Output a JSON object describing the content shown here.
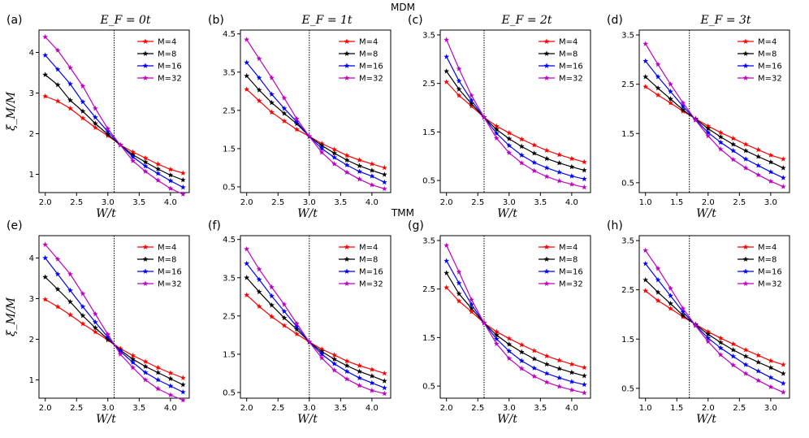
{
  "row_titles": [
    "MDM",
    "TMM"
  ],
  "chart_data": [
    {
      "type": "line",
      "panel": "(a)",
      "title": "E_F = 0t",
      "xlabel": "W/t",
      "ylabel": "ξ_M/M",
      "xlim": [
        1.9,
        4.3
      ],
      "ylim": [
        0.55,
        4.55
      ],
      "xticks": [
        2.0,
        2.5,
        3.0,
        3.5,
        4.0
      ],
      "yticks": [
        1,
        2,
        3,
        4
      ],
      "critical_x": 3.1,
      "x": [
        2.0,
        2.2,
        2.4,
        2.6,
        2.8,
        3.0,
        3.2,
        3.4,
        3.6,
        3.8,
        4.0,
        4.2
      ],
      "series": [
        {
          "name": "M=4",
          "color": "#ff0000",
          "values": [
            2.92,
            2.8,
            2.62,
            2.38,
            2.15,
            1.95,
            1.72,
            1.55,
            1.4,
            1.25,
            1.12,
            1.03
          ]
        },
        {
          "name": "M=8",
          "color": "#000000",
          "values": [
            3.45,
            3.2,
            2.82,
            2.55,
            2.25,
            1.98,
            1.72,
            1.48,
            1.3,
            1.13,
            0.98,
            0.86
          ]
        },
        {
          "name": "M=16",
          "color": "#0000ff",
          "values": [
            3.93,
            3.58,
            3.22,
            2.78,
            2.4,
            2.05,
            1.72,
            1.43,
            1.2,
            1.02,
            0.84,
            0.68
          ]
        },
        {
          "name": "M=32",
          "color": "#c000c0",
          "values": [
            4.38,
            4.05,
            3.62,
            3.17,
            2.62,
            2.12,
            1.72,
            1.33,
            1.07,
            0.85,
            0.65,
            0.51
          ]
        }
      ]
    },
    {
      "type": "line",
      "panel": "(b)",
      "title": "E_F = 1t",
      "xlabel": "W/t",
      "ylabel": "",
      "xlim": [
        1.9,
        4.3
      ],
      "ylim": [
        0.35,
        4.6
      ],
      "xticks": [
        2.0,
        2.5,
        3.0,
        3.5,
        4.0
      ],
      "yticks": [
        0.5,
        1.5,
        2.5,
        3.5,
        4.5
      ],
      "critical_x": 3.0,
      "x": [
        2.0,
        2.2,
        2.4,
        2.6,
        2.8,
        3.0,
        3.2,
        3.4,
        3.6,
        3.8,
        4.0,
        4.2
      ],
      "series": [
        {
          "name": "M=4",
          "color": "#ff0000",
          "values": [
            3.05,
            2.75,
            2.45,
            2.22,
            2.0,
            1.82,
            1.63,
            1.48,
            1.32,
            1.2,
            1.1,
            1.0
          ]
        },
        {
          "name": "M=8",
          "color": "#000000",
          "values": [
            3.4,
            3.03,
            2.7,
            2.42,
            2.15,
            1.82,
            1.58,
            1.38,
            1.2,
            1.05,
            0.93,
            0.82
          ]
        },
        {
          "name": "M=16",
          "color": "#0000ff",
          "values": [
            3.75,
            3.35,
            2.92,
            2.55,
            2.2,
            1.82,
            1.5,
            1.27,
            1.07,
            0.9,
            0.78,
            0.62
          ]
        },
        {
          "name": "M=32",
          "color": "#c000c0",
          "values": [
            4.35,
            3.85,
            3.35,
            2.82,
            2.28,
            1.82,
            1.4,
            1.1,
            0.88,
            0.7,
            0.55,
            0.45
          ]
        }
      ]
    },
    {
      "type": "line",
      "panel": "(c)",
      "title": "E_F = 2t",
      "xlabel": "W/t",
      "ylabel": "",
      "xlim": [
        1.9,
        4.3
      ],
      "ylim": [
        0.25,
        3.6
      ],
      "xticks": [
        2.0,
        2.5,
        3.0,
        3.5,
        4.0
      ],
      "yticks": [
        0.5,
        1.5,
        2.5,
        3.5
      ],
      "critical_x": 2.6,
      "x": [
        2.0,
        2.2,
        2.4,
        2.6,
        2.8,
        3.0,
        3.2,
        3.4,
        3.6,
        3.8,
        4.0,
        4.2
      ],
      "series": [
        {
          "name": "M=4",
          "color": "#ff0000",
          "values": [
            2.53,
            2.25,
            2.03,
            1.8,
            1.62,
            1.48,
            1.35,
            1.23,
            1.12,
            1.03,
            0.95,
            0.88
          ]
        },
        {
          "name": "M=8",
          "color": "#000000",
          "values": [
            2.75,
            2.38,
            2.08,
            1.8,
            1.55,
            1.36,
            1.2,
            1.06,
            0.95,
            0.86,
            0.78,
            0.71
          ]
        },
        {
          "name": "M=16",
          "color": "#0000ff",
          "values": [
            3.05,
            2.55,
            2.15,
            1.8,
            1.47,
            1.22,
            1.02,
            0.87,
            0.76,
            0.67,
            0.59,
            0.53
          ]
        },
        {
          "name": "M=32",
          "color": "#c000c0",
          "values": [
            3.4,
            2.8,
            2.25,
            1.8,
            1.37,
            1.07,
            0.86,
            0.7,
            0.58,
            0.49,
            0.42,
            0.36
          ]
        }
      ]
    },
    {
      "type": "line",
      "panel": "(d)",
      "title": "E_F = 3t",
      "xlabel": "W/t",
      "ylabel": "",
      "xlim": [
        0.9,
        3.3
      ],
      "ylim": [
        0.3,
        3.6
      ],
      "xticks": [
        1.0,
        1.5,
        2.0,
        2.5,
        3.0
      ],
      "yticks": [
        0.5,
        1.5,
        2.5,
        3.5
      ],
      "critical_x": 1.7,
      "x": [
        1.0,
        1.2,
        1.4,
        1.6,
        1.8,
        2.0,
        2.2,
        2.4,
        2.6,
        2.8,
        3.0,
        3.2
      ],
      "series": [
        {
          "name": "M=4",
          "color": "#ff0000",
          "values": [
            2.45,
            2.28,
            2.12,
            1.95,
            1.8,
            1.65,
            1.52,
            1.4,
            1.28,
            1.17,
            1.06,
            0.98
          ]
        },
        {
          "name": "M=8",
          "color": "#000000",
          "values": [
            2.65,
            2.42,
            2.2,
            1.98,
            1.79,
            1.6,
            1.43,
            1.28,
            1.15,
            1.03,
            0.92,
            0.8
          ]
        },
        {
          "name": "M=16",
          "color": "#0000ff",
          "values": [
            2.97,
            2.65,
            2.35,
            2.05,
            1.78,
            1.52,
            1.32,
            1.15,
            0.98,
            0.85,
            0.72,
            0.6
          ]
        },
        {
          "name": "M=32",
          "color": "#c000c0",
          "values": [
            3.32,
            2.9,
            2.5,
            2.12,
            1.77,
            1.45,
            1.18,
            0.97,
            0.8,
            0.66,
            0.53,
            0.42
          ]
        }
      ]
    },
    {
      "type": "line",
      "panel": "(e)",
      "title": "",
      "xlabel": "W/t",
      "ylabel": "ξ_M/M",
      "xlim": [
        1.9,
        4.3
      ],
      "ylim": [
        0.55,
        4.55
      ],
      "xticks": [
        2.0,
        2.5,
        3.0,
        3.5,
        4.0
      ],
      "yticks": [
        1,
        2,
        3,
        4
      ],
      "critical_x": 3.1,
      "x": [
        2.0,
        2.2,
        2.4,
        2.6,
        2.8,
        3.0,
        3.2,
        3.4,
        3.6,
        3.8,
        4.0,
        4.2
      ],
      "series": [
        {
          "name": "M=4",
          "color": "#ff0000",
          "values": [
            2.98,
            2.8,
            2.6,
            2.38,
            2.18,
            1.98,
            1.77,
            1.6,
            1.45,
            1.3,
            1.17,
            1.05
          ]
        },
        {
          "name": "M=8",
          "color": "#000000",
          "values": [
            3.53,
            3.23,
            2.92,
            2.58,
            2.28,
            2.0,
            1.73,
            1.51,
            1.33,
            1.18,
            1.03,
            0.88
          ]
        },
        {
          "name": "M=16",
          "color": "#0000ff",
          "values": [
            4.0,
            3.6,
            3.2,
            2.8,
            2.42,
            2.05,
            1.7,
            1.43,
            1.18,
            1.0,
            0.85,
            0.7
          ]
        },
        {
          "name": "M=32",
          "color": "#c000c0",
          "values": [
            4.33,
            3.97,
            3.6,
            3.12,
            2.62,
            2.12,
            1.63,
            1.3,
            1.0,
            0.78,
            0.63,
            0.5
          ]
        }
      ]
    },
    {
      "type": "line",
      "panel": "(f)",
      "title": "",
      "xlabel": "W/t",
      "ylabel": "",
      "xlim": [
        1.9,
        4.3
      ],
      "ylim": [
        0.35,
        4.6
      ],
      "xticks": [
        2.0,
        2.5,
        3.0,
        3.5,
        4.0
      ],
      "yticks": [
        0.5,
        1.5,
        2.5,
        3.5,
        4.5
      ],
      "critical_x": 3.0,
      "x": [
        2.0,
        2.2,
        2.4,
        2.6,
        2.8,
        3.0,
        3.2,
        3.4,
        3.6,
        3.8,
        4.0,
        4.2
      ],
      "series": [
        {
          "name": "M=4",
          "color": "#ff0000",
          "values": [
            3.05,
            2.75,
            2.48,
            2.25,
            2.03,
            1.82,
            1.63,
            1.48,
            1.32,
            1.2,
            1.1,
            1.0
          ]
        },
        {
          "name": "M=8",
          "color": "#000000",
          "values": [
            3.5,
            3.13,
            2.78,
            2.45,
            2.15,
            1.82,
            1.57,
            1.37,
            1.2,
            1.05,
            0.93,
            0.8
          ]
        },
        {
          "name": "M=16",
          "color": "#0000ff",
          "values": [
            3.87,
            3.45,
            3.02,
            2.62,
            2.22,
            1.82,
            1.5,
            1.25,
            1.05,
            0.88,
            0.75,
            0.62
          ]
        },
        {
          "name": "M=32",
          "color": "#c000c0",
          "values": [
            4.25,
            3.72,
            3.25,
            2.8,
            2.3,
            1.82,
            1.4,
            1.08,
            0.85,
            0.68,
            0.55,
            0.47
          ]
        }
      ]
    },
    {
      "type": "line",
      "panel": "(g)",
      "title": "",
      "xlabel": "W/t",
      "ylabel": "",
      "xlim": [
        1.9,
        4.3
      ],
      "ylim": [
        0.25,
        3.6
      ],
      "xticks": [
        2.0,
        2.5,
        3.0,
        3.5,
        4.0
      ],
      "yticks": [
        0.5,
        1.5,
        2.5,
        3.5
      ],
      "critical_x": 2.6,
      "x": [
        2.0,
        2.2,
        2.4,
        2.6,
        2.8,
        3.0,
        3.2,
        3.4,
        3.6,
        3.8,
        4.0,
        4.2
      ],
      "series": [
        {
          "name": "M=4",
          "color": "#ff0000",
          "values": [
            2.53,
            2.25,
            2.03,
            1.8,
            1.62,
            1.48,
            1.35,
            1.23,
            1.12,
            1.03,
            0.95,
            0.88
          ]
        },
        {
          "name": "M=8",
          "color": "#000000",
          "values": [
            2.83,
            2.4,
            2.1,
            1.8,
            1.55,
            1.36,
            1.2,
            1.06,
            0.95,
            0.86,
            0.78,
            0.71
          ]
        },
        {
          "name": "M=16",
          "color": "#0000ff",
          "values": [
            3.08,
            2.62,
            2.18,
            1.8,
            1.47,
            1.22,
            1.02,
            0.87,
            0.76,
            0.67,
            0.59,
            0.53
          ]
        },
        {
          "name": "M=32",
          "color": "#c000c0",
          "values": [
            3.4,
            2.85,
            2.28,
            1.8,
            1.37,
            1.07,
            0.86,
            0.7,
            0.58,
            0.49,
            0.42,
            0.36
          ]
        }
      ]
    },
    {
      "type": "line",
      "panel": "(h)",
      "title": "",
      "xlabel": "W/t",
      "ylabel": "",
      "xlim": [
        0.9,
        3.3
      ],
      "ylim": [
        0.3,
        3.6
      ],
      "xticks": [
        1.0,
        1.5,
        2.0,
        2.5,
        3.0
      ],
      "yticks": [
        0.5,
        1.5,
        2.5,
        3.5
      ],
      "critical_x": 1.7,
      "x": [
        1.0,
        1.2,
        1.4,
        1.6,
        1.8,
        2.0,
        2.2,
        2.4,
        2.6,
        2.8,
        3.0,
        3.2
      ],
      "series": [
        {
          "name": "M=4",
          "color": "#ff0000",
          "values": [
            2.48,
            2.28,
            2.12,
            1.95,
            1.8,
            1.65,
            1.52,
            1.4,
            1.28,
            1.17,
            1.06,
            0.98
          ]
        },
        {
          "name": "M=8",
          "color": "#000000",
          "values": [
            2.7,
            2.45,
            2.22,
            1.98,
            1.79,
            1.6,
            1.43,
            1.28,
            1.15,
            1.03,
            0.92,
            0.8
          ]
        },
        {
          "name": "M=16",
          "color": "#0000ff",
          "values": [
            3.03,
            2.7,
            2.38,
            2.05,
            1.78,
            1.52,
            1.32,
            1.15,
            0.98,
            0.85,
            0.72,
            0.6
          ]
        },
        {
          "name": "M=32",
          "color": "#c000c0",
          "values": [
            3.3,
            2.93,
            2.53,
            2.12,
            1.77,
            1.45,
            1.18,
            0.97,
            0.8,
            0.66,
            0.53,
            0.42
          ]
        }
      ]
    }
  ]
}
